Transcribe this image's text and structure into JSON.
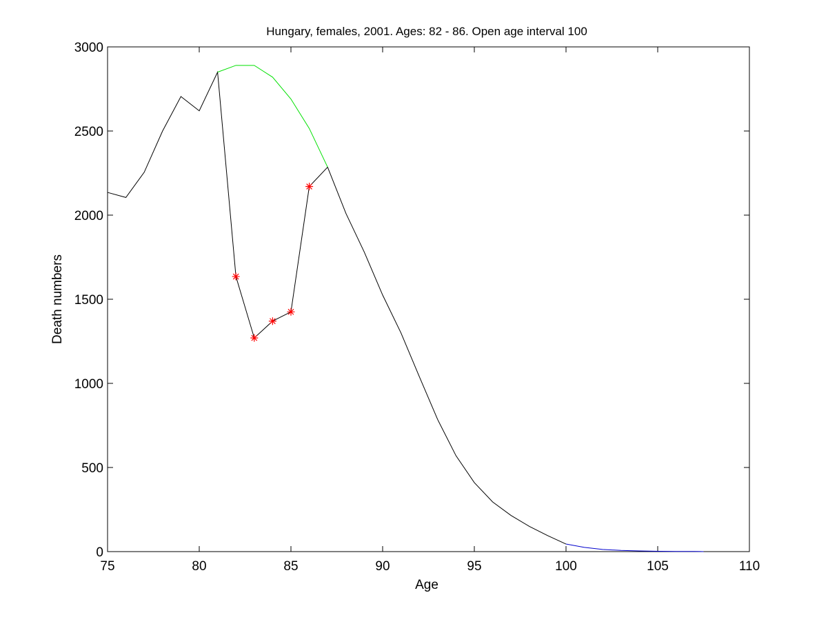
{
  "chart_data": {
    "type": "line",
    "title": "Hungary, females, 2001. Ages: 82 - 86. Open age interval 100",
    "xlabel": "Age",
    "ylabel": "Death numbers",
    "xlim": [
      75,
      110
    ],
    "ylim": [
      0,
      3000
    ],
    "xticks": [
      75,
      80,
      85,
      90,
      95,
      100,
      105,
      110
    ],
    "yticks": [
      0,
      500,
      1000,
      1500,
      2000,
      2500,
      3000
    ],
    "grid": false,
    "series": [
      {
        "color": "#000000",
        "marker": "none",
        "x": [
          75,
          76,
          77,
          78,
          79,
          80,
          81,
          82,
          83,
          84,
          85,
          86,
          87,
          88,
          89,
          90,
          91,
          92,
          93,
          94,
          95,
          96,
          97,
          98,
          99,
          100
        ],
        "y": [
          2135,
          2105,
          2255,
          2500,
          2705,
          2620,
          2850,
          1635,
          1270,
          1370,
          1425,
          2170,
          2285,
          2010,
          1780,
          1525,
          1300,
          1040,
          785,
          570,
          410,
          295,
          215,
          150,
          95,
          45
        ]
      },
      {
        "color": "#00e000",
        "marker": "none",
        "x": [
          81,
          82,
          83,
          84,
          85,
          86,
          87
        ],
        "y": [
          2850,
          2890,
          2890,
          2820,
          2690,
          2515,
          2285
        ]
      },
      {
        "color": "#0000cc",
        "marker": "none",
        "x": [
          100,
          101,
          102,
          103,
          104,
          105,
          106,
          107,
          107.5
        ],
        "y": [
          45,
          25,
          13,
          7,
          4,
          2,
          1,
          1,
          0
        ]
      },
      {
        "color": "#ff0000",
        "marker": "asterisk",
        "line": "none",
        "x": [
          82,
          83,
          84,
          85,
          86
        ],
        "y": [
          1635,
          1270,
          1370,
          1425,
          2170
        ]
      }
    ]
  }
}
